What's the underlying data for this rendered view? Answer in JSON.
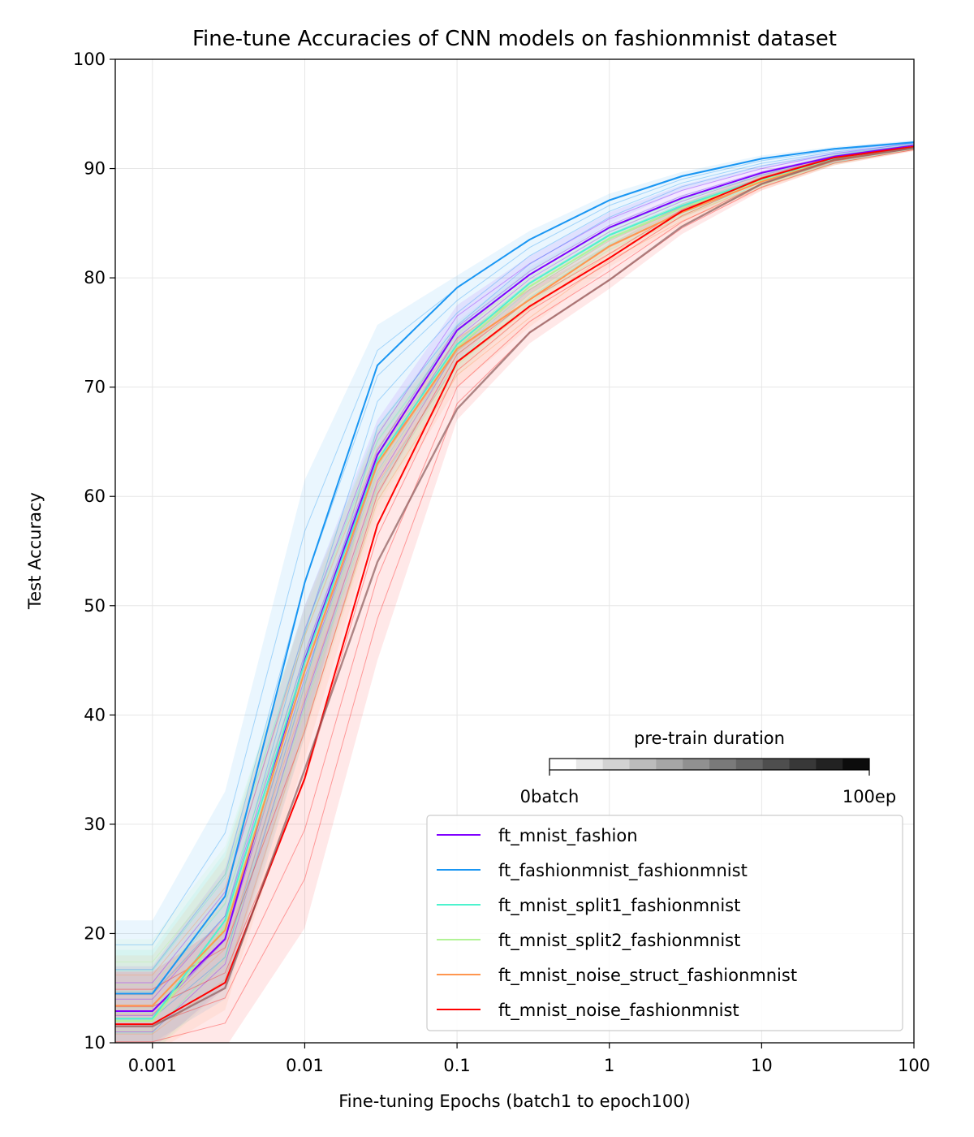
{
  "chart_data": {
    "type": "line",
    "title": "Fine-tune Accuracies of CNN models on fashionmnist dataset",
    "xlabel": "Fine-tuning Epochs (batch1 to epoch100)",
    "ylabel": "Test Accuracy",
    "xscale": "log",
    "xlim": [
      0.00057,
      100
    ],
    "ylim": [
      10,
      100
    ],
    "xticks": [
      0.001,
      0.01,
      0.1,
      1,
      10,
      100
    ],
    "xtick_labels": [
      "0.001",
      "0.01",
      "0.1",
      "1",
      "10",
      "100"
    ],
    "yticks": [
      10,
      20,
      30,
      40,
      50,
      60,
      70,
      80,
      90,
      100
    ],
    "ytick_labels": [
      "10",
      "20",
      "30",
      "40",
      "50",
      "60",
      "70",
      "80",
      "90",
      "100"
    ],
    "grid": true,
    "legend_position": "lower-right",
    "x": [
      0.000571,
      0.001,
      0.003,
      0.01,
      0.03,
      0.1,
      0.3,
      1,
      3,
      10,
      30,
      100
    ],
    "series": [
      {
        "name": "ft_mnist_fashion",
        "color": "#8000ff",
        "values": [
          12.9,
          12.9,
          19.5,
          45.0,
          63.8,
          75.2,
          80.3,
          84.6,
          87.3,
          89.6,
          91.1,
          92.1
        ],
        "band_low": [
          9.5,
          9.5,
          15.0,
          39.0,
          60.0,
          72.5,
          78.5,
          83.0,
          86.0,
          88.8,
          90.5,
          91.7
        ],
        "band_high": [
          17.0,
          17.0,
          26.0,
          50.0,
          67.0,
          77.5,
          82.0,
          86.0,
          88.5,
          90.3,
          91.6,
          92.5
        ]
      },
      {
        "name": "ft_fashionmnist_fashionmnist",
        "color": "#1996f3",
        "values": [
          14.5,
          14.5,
          23.4,
          52.1,
          72.0,
          79.1,
          83.5,
          87.1,
          89.3,
          90.9,
          91.8,
          92.4
        ],
        "band_low": [
          10.0,
          10.0,
          14.0,
          38.0,
          64.0,
          74.5,
          80.5,
          85.0,
          88.0,
          90.0,
          91.2,
          92.0
        ],
        "band_high": [
          21.2,
          21.2,
          33.0,
          61.5,
          75.7,
          80.2,
          84.3,
          87.7,
          89.7,
          91.2,
          92.0,
          92.6
        ]
      },
      {
        "name": "ft_mnist_split1_fashionmnist",
        "color": "#4df3ce",
        "values": [
          12.2,
          12.2,
          21.2,
          44.8,
          63.3,
          73.9,
          79.5,
          83.9,
          86.6,
          89.0,
          90.9,
          92.0
        ],
        "band_low": [
          9.0,
          9.0,
          15.5,
          38.5,
          59.5,
          71.5,
          77.5,
          82.5,
          85.5,
          88.3,
          90.4,
          91.7
        ],
        "band_high": [
          18.5,
          18.5,
          27.5,
          50.0,
          66.5,
          76.0,
          81.0,
          85.0,
          87.6,
          89.7,
          91.4,
          92.3
        ]
      },
      {
        "name": "ft_mnist_split2_fashionmnist",
        "color": "#b2f396",
        "values": [
          12.0,
          12.0,
          20.6,
          44.0,
          62.9,
          73.6,
          79.2,
          83.6,
          86.4,
          88.9,
          90.8,
          92.0
        ],
        "band_low": [
          9.0,
          9.0,
          15.0,
          38.0,
          59.0,
          71.0,
          77.0,
          82.0,
          85.3,
          88.2,
          90.3,
          91.7
        ],
        "band_high": [
          19.5,
          19.5,
          28.0,
          49.5,
          66.5,
          75.8,
          80.8,
          84.8,
          87.5,
          89.6,
          91.3,
          92.3
        ]
      },
      {
        "name": "ft_mnist_noise_struct_fashionmnist",
        "color": "#ff964f",
        "values": [
          13.4,
          13.4,
          20.3,
          44.0,
          63.0,
          73.5,
          78.0,
          82.9,
          86.0,
          88.8,
          90.8,
          92.0
        ],
        "band_low": [
          9.0,
          9.0,
          13.0,
          36.0,
          58.0,
          70.0,
          75.5,
          81.0,
          84.8,
          88.0,
          90.3,
          91.6
        ],
        "band_high": [
          18.0,
          18.0,
          27.0,
          50.0,
          66.0,
          75.5,
          79.8,
          84.0,
          86.8,
          89.3,
          91.2,
          92.3
        ]
      },
      {
        "name": "ft_mnist_noise_fashionmnist",
        "color": "#ff0000",
        "values": [
          11.7,
          11.7,
          15.5,
          34.2,
          57.4,
          72.3,
          77.4,
          81.8,
          86.1,
          89.1,
          91.0,
          92.0
        ],
        "band_low": [
          8.5,
          8.5,
          9.5,
          20.5,
          45.0,
          67.0,
          74.0,
          79.0,
          84.0,
          88.0,
          90.3,
          91.6
        ],
        "band_high": [
          16.5,
          16.5,
          21.0,
          43.0,
          64.0,
          74.5,
          79.0,
          83.0,
          86.8,
          89.5,
          91.3,
          92.2
        ]
      },
      {
        "name": "",
        "color": "#8c5a5a",
        "values": [
          11.5,
          11.5,
          15.0,
          35.0,
          54.0,
          68.0,
          75.0,
          79.8,
          84.7,
          88.6,
          90.8,
          91.9
        ],
        "band_low": [],
        "band_high": []
      }
    ],
    "colorbar": {
      "label": "pre-train duration",
      "min_label": "0batch",
      "max_label": "100ep",
      "colors": [
        "#ffffff",
        "#e8e8e8",
        "#d2d2d2",
        "#bcbcbc",
        "#a6a6a6",
        "#909090",
        "#7a7a7a",
        "#646464",
        "#4e4e4e",
        "#383838",
        "#222222",
        "#0c0c0c"
      ]
    }
  }
}
